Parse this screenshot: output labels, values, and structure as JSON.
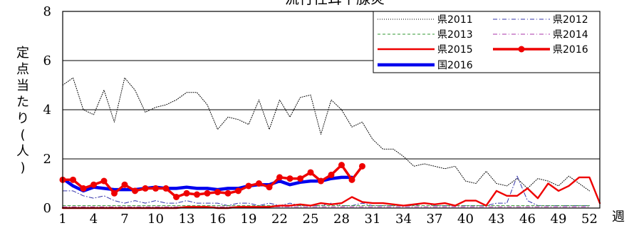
{
  "chart_data": {
    "type": "line",
    "title": "流行性耳下腺炎",
    "ylabel": "定点当たり(人)",
    "xlabel": "週",
    "ylim": [
      0,
      8
    ],
    "yticks": [
      0,
      2,
      4,
      6,
      8
    ],
    "xlim": [
      1,
      53
    ],
    "xticks": [
      1,
      4,
      7,
      10,
      13,
      16,
      19,
      22,
      25,
      28,
      31,
      34,
      37,
      40,
      43,
      46,
      49,
      52
    ],
    "grid": "horizontal",
    "legend_position": "top-right",
    "series": [
      {
        "name": "県2011",
        "color": "#000000",
        "style": "dotted",
        "x": [
          1,
          2,
          3,
          4,
          5,
          6,
          7,
          8,
          9,
          10,
          11,
          12,
          13,
          14,
          15,
          16,
          17,
          18,
          19,
          20,
          21,
          22,
          23,
          24,
          25,
          26,
          27,
          28,
          29,
          30,
          31,
          32,
          33,
          34,
          35,
          36,
          37,
          38,
          39,
          40,
          41,
          42,
          43,
          44,
          45,
          46,
          47,
          48,
          49,
          50,
          51,
          52
        ],
        "values": [
          5.0,
          5.3,
          4.0,
          3.8,
          4.8,
          3.5,
          5.3,
          4.8,
          3.9,
          4.1,
          4.2,
          4.4,
          4.7,
          4.7,
          4.2,
          3.2,
          3.7,
          3.6,
          3.4,
          4.4,
          3.2,
          4.4,
          3.7,
          4.5,
          4.6,
          3.0,
          4.4,
          4.0,
          3.3,
          3.5,
          2.8,
          2.4,
          2.4,
          2.1,
          1.7,
          1.8,
          1.7,
          1.6,
          1.7,
          1.1,
          1.0,
          1.5,
          1.0,
          0.9,
          1.2,
          0.8,
          1.2,
          1.1,
          0.9,
          1.3,
          1.0,
          0.7
        ]
      },
      {
        "name": "県2012",
        "color": "#3333aa",
        "style": "dashdot",
        "x": [
          1,
          2,
          3,
          4,
          5,
          6,
          7,
          8,
          9,
          10,
          11,
          12,
          13,
          14,
          15,
          16,
          17,
          18,
          19,
          20,
          21,
          22,
          23,
          24,
          25,
          26,
          27,
          28,
          29,
          30,
          31,
          32,
          33,
          34,
          35,
          36,
          37,
          38,
          39,
          40,
          41,
          42,
          43,
          44,
          45,
          46,
          47,
          48,
          49,
          50,
          51,
          52
        ],
        "values": [
          0.7,
          0.7,
          0.5,
          0.4,
          0.5,
          0.3,
          0.2,
          0.3,
          0.2,
          0.3,
          0.2,
          0.2,
          0.3,
          0.2,
          0.2,
          0.2,
          0.1,
          0.2,
          0.2,
          0.1,
          0.2,
          0.1,
          0.2,
          0.1,
          0.1,
          0.1,
          0.2,
          0.1,
          0.1,
          0.2,
          0.1,
          0.1,
          0.1,
          0.1,
          0.1,
          0.2,
          0.1,
          0.1,
          0.1,
          0.1,
          0.1,
          0.1,
          0.2,
          0.2,
          1.3,
          0.3,
          0.1,
          0.1,
          0.1,
          0.1,
          0.1,
          0.1
        ]
      },
      {
        "name": "県2013",
        "color": "#339933",
        "style": "dashed",
        "x": [
          1,
          2,
          3,
          4,
          5,
          6,
          7,
          8,
          9,
          10,
          11,
          12,
          13,
          14,
          15,
          16,
          17,
          18,
          19,
          20,
          21,
          22,
          23,
          24,
          25,
          26,
          27,
          28,
          29,
          30,
          31,
          32,
          33,
          34,
          35,
          36,
          37,
          38,
          39,
          40,
          41,
          42,
          43,
          44,
          45,
          46,
          47,
          48,
          49,
          50,
          51,
          52
        ],
        "values": [
          0.1,
          0.1,
          0.1,
          0.1,
          0.1,
          0.1,
          0.1,
          0.1,
          0.1,
          0.1,
          0.1,
          0.1,
          0.1,
          0.1,
          0.1,
          0.1,
          0.1,
          0.1,
          0.1,
          0.1,
          0.1,
          0.1,
          0.1,
          0.1,
          0.1,
          0.1,
          0.1,
          0.1,
          0.1,
          0.1,
          0.1,
          0.1,
          0.1,
          0.1,
          0.1,
          0.1,
          0.1,
          0.1,
          0.1,
          0.1,
          0.1,
          0.1,
          0.1,
          0.1,
          0.1,
          0.1,
          0.1,
          0.1,
          0.1,
          0.1,
          0.1,
          0.1
        ]
      },
      {
        "name": "県2014",
        "color": "#aa33aa",
        "style": "dashdot",
        "x": [
          1,
          2,
          3,
          4,
          5,
          6,
          7,
          8,
          9,
          10,
          11,
          12,
          13,
          14,
          15,
          16,
          17,
          18,
          19,
          20,
          21,
          22,
          23,
          24,
          25,
          26,
          27,
          28,
          29,
          30,
          31,
          32,
          33,
          34,
          35,
          36,
          37,
          38,
          39,
          40,
          41,
          42,
          43,
          44,
          45,
          46,
          47,
          48,
          49,
          50,
          51,
          52
        ],
        "values": [
          0.05,
          0.05,
          0.05,
          0.05,
          0.05,
          0.05,
          0.05,
          0.05,
          0.05,
          0.05,
          0.05,
          0.05,
          0.05,
          0.05,
          0.05,
          0.05,
          0.05,
          0.05,
          0.05,
          0.05,
          0.05,
          0.05,
          0.05,
          0.05,
          0.05,
          0.05,
          0.05,
          0.05,
          0.05,
          0.05,
          0.05,
          0.05,
          0.05,
          0.05,
          0.05,
          0.05,
          0.05,
          0.05,
          0.05,
          0.05,
          0.05,
          0.05,
          0.05,
          0.05,
          0.05,
          0.05,
          0.05,
          0.05,
          0.05,
          0.05,
          0.05,
          0.05
        ]
      },
      {
        "name": "県2015",
        "color": "#ee0000",
        "style": "solid",
        "x": [
          1,
          2,
          3,
          4,
          5,
          6,
          7,
          8,
          9,
          10,
          11,
          12,
          13,
          14,
          15,
          16,
          17,
          18,
          19,
          20,
          21,
          22,
          23,
          24,
          25,
          26,
          27,
          28,
          29,
          30,
          31,
          32,
          33,
          34,
          35,
          36,
          37,
          38,
          39,
          40,
          41,
          42,
          43,
          44,
          45,
          46,
          47,
          48,
          49,
          50,
          51,
          52,
          53
        ],
        "values": [
          0.0,
          0.0,
          0.0,
          0.0,
          0.0,
          0.0,
          0.0,
          0.0,
          0.0,
          0.0,
          0.0,
          0.0,
          0.05,
          0.05,
          0.05,
          0.0,
          0.0,
          0.05,
          0.05,
          0.05,
          0.05,
          0.1,
          0.1,
          0.15,
          0.1,
          0.2,
          0.15,
          0.2,
          0.45,
          0.25,
          0.2,
          0.2,
          0.15,
          0.1,
          0.15,
          0.2,
          0.15,
          0.2,
          0.1,
          0.3,
          0.3,
          0.1,
          0.7,
          0.5,
          0.5,
          0.8,
          0.4,
          1.0,
          0.7,
          0.9,
          1.25,
          1.25,
          0.2
        ]
      },
      {
        "name": "県2016",
        "color": "#ee0000",
        "style": "solid-marker",
        "x": [
          1,
          2,
          3,
          4,
          5,
          6,
          7,
          8,
          9,
          10,
          11,
          12,
          13,
          14,
          15,
          16,
          17,
          18,
          19,
          20,
          21,
          22,
          23,
          24,
          25,
          26,
          27,
          28,
          29,
          30
        ],
        "values": [
          1.15,
          1.15,
          0.8,
          0.95,
          1.1,
          0.6,
          0.95,
          0.7,
          0.8,
          0.8,
          0.8,
          0.45,
          0.6,
          0.55,
          0.6,
          0.65,
          0.6,
          0.7,
          0.9,
          1.0,
          0.85,
          1.25,
          1.2,
          1.2,
          1.45,
          1.1,
          1.35,
          1.75,
          1.15,
          1.7
        ]
      },
      {
        "name": "国2016",
        "color": "#0000ee",
        "style": "thick",
        "x": [
          1,
          2,
          3,
          4,
          5,
          6,
          7,
          8,
          9,
          10,
          11,
          12,
          13,
          14,
          15,
          16,
          17,
          18,
          19,
          20,
          21,
          22,
          23,
          24,
          25,
          26,
          27,
          28,
          29
        ],
        "values": [
          1.2,
          0.9,
          0.7,
          0.85,
          0.8,
          0.75,
          0.75,
          0.75,
          0.8,
          0.85,
          0.8,
          0.8,
          0.85,
          0.8,
          0.8,
          0.75,
          0.8,
          0.8,
          0.9,
          0.95,
          0.95,
          1.1,
          0.95,
          1.05,
          1.1,
          1.1,
          1.2,
          1.25,
          1.25
        ]
      }
    ]
  }
}
